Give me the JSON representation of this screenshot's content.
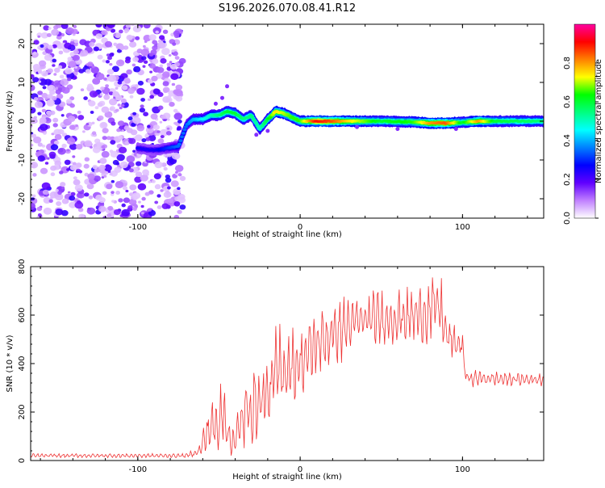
{
  "title": "S196.2026.070.08.41.R12",
  "chart_data": [
    {
      "type": "heatmap",
      "xlabel": "Height of straight line (km)",
      "ylabel": "Frequency (Hz)",
      "xlim": [
        -166,
        150
      ],
      "ylim": [
        -25,
        25
      ],
      "xticks": [
        -100,
        0,
        100
      ],
      "yticks": [
        20,
        10,
        0,
        -10,
        -20
      ],
      "colorbar": {
        "label": "Normalized spectral amplitude",
        "range": [
          0,
          1
        ],
        "ticks": [
          "0.0",
          "0.2",
          "0.4",
          "0.6",
          "0.8"
        ],
        "tick_values": [
          0.0,
          0.2,
          0.4,
          0.6,
          0.8
        ],
        "colors": [
          "#ffffff",
          "#c080ff",
          "#6000ff",
          "#0000ff",
          "#0080ff",
          "#00ffff",
          "#00ff80",
          "#00ff00",
          "#ffff00",
          "#ff8000",
          "#ff0000",
          "#ff00a0"
        ]
      },
      "noise_region": {
        "x": [
          -166,
          -72
        ],
        "freq": [
          -25,
          25
        ],
        "amplitude_max": 0.2
      },
      "ridge": [
        {
          "x": -100,
          "f": -7.0,
          "a": 0.25
        },
        {
          "x": -90,
          "f": -7.5,
          "a": 0.25
        },
        {
          "x": -82,
          "f": -7.0,
          "a": 0.3
        },
        {
          "x": -75,
          "f": -6.5,
          "a": 0.35
        },
        {
          "x": -70,
          "f": -1.0,
          "a": 0.35
        },
        {
          "x": -66,
          "f": 0.5,
          "a": 0.4
        },
        {
          "x": -60,
          "f": 0.5,
          "a": 0.45
        },
        {
          "x": -55,
          "f": 1.5,
          "a": 0.5
        },
        {
          "x": -50,
          "f": 1.5,
          "a": 0.55
        },
        {
          "x": -45,
          "f": 2.5,
          "a": 0.6
        },
        {
          "x": -40,
          "f": 2.0,
          "a": 0.6
        },
        {
          "x": -35,
          "f": 0.5,
          "a": 0.55
        },
        {
          "x": -30,
          "f": 1.5,
          "a": 0.55
        },
        {
          "x": -25,
          "f": -2.0,
          "a": 0.5
        },
        {
          "x": -20,
          "f": 0.5,
          "a": 0.6
        },
        {
          "x": -15,
          "f": 2.5,
          "a": 0.75
        },
        {
          "x": -10,
          "f": 2.0,
          "a": 0.7
        },
        {
          "x": -5,
          "f": 1.0,
          "a": 0.65
        },
        {
          "x": 0,
          "f": 0.0,
          "a": 0.65
        },
        {
          "x": 10,
          "f": 0.0,
          "a": 0.9
        },
        {
          "x": 20,
          "f": 0.0,
          "a": 0.85
        },
        {
          "x": 30,
          "f": 0.0,
          "a": 0.75
        },
        {
          "x": 50,
          "f": 0.0,
          "a": 0.6
        },
        {
          "x": 70,
          "f": -0.2,
          "a": 0.65
        },
        {
          "x": 80,
          "f": -0.5,
          "a": 0.8
        },
        {
          "x": 90,
          "f": -0.5,
          "a": 0.85
        },
        {
          "x": 100,
          "f": -0.3,
          "a": 0.6
        },
        {
          "x": 110,
          "f": 0.0,
          "a": 0.8
        },
        {
          "x": 120,
          "f": 0.0,
          "a": 0.6
        },
        {
          "x": 150,
          "f": 0.0,
          "a": 0.55
        }
      ]
    },
    {
      "type": "line",
      "xlabel": "Height of straight line (km)",
      "ylabel": "SNR (10 * v/v)",
      "xlim": [
        -166,
        150
      ],
      "ylim": [
        0,
        800
      ],
      "xticks": [
        -100,
        0,
        100
      ],
      "yticks": [
        0,
        200,
        400,
        600,
        800
      ],
      "color": "#ee3333",
      "series": [
        {
          "name": "SNR",
          "envelope": [
            {
              "x": -166,
              "mean": 20,
              "osc": 8
            },
            {
              "x": -70,
              "mean": 20,
              "osc": 8
            },
            {
              "x": -62,
              "mean": 40,
              "osc": 25
            },
            {
              "x": -55,
              "mean": 150,
              "osc": 120
            },
            {
              "x": -50,
              "mean": 120,
              "osc": 100
            },
            {
              "x": -48,
              "mean": 300,
              "osc": 250
            },
            {
              "x": -45,
              "mean": 100,
              "osc": 80
            },
            {
              "x": -40,
              "mean": 80,
              "osc": 70
            },
            {
              "x": -35,
              "mean": 180,
              "osc": 140
            },
            {
              "x": -30,
              "mean": 220,
              "osc": 150
            },
            {
              "x": -20,
              "mean": 270,
              "osc": 160
            },
            {
              "x": -15,
              "mean": 350,
              "osc": 250
            },
            {
              "x": -10,
              "mean": 380,
              "osc": 150
            },
            {
              "x": 0,
              "mean": 400,
              "osc": 140
            },
            {
              "x": 10,
              "mean": 480,
              "osc": 130
            },
            {
              "x": 20,
              "mean": 520,
              "osc": 130
            },
            {
              "x": 30,
              "mean": 560,
              "osc": 120
            },
            {
              "x": 40,
              "mean": 580,
              "osc": 110
            },
            {
              "x": 60,
              "mean": 590,
              "osc": 110
            },
            {
              "x": 75,
              "mean": 600,
              "osc": 110
            },
            {
              "x": 80,
              "mean": 620,
              "osc": 130
            },
            {
              "x": 86,
              "mean": 640,
              "osc": 160
            },
            {
              "x": 90,
              "mean": 520,
              "osc": 80
            },
            {
              "x": 95,
              "mean": 480,
              "osc": 70
            },
            {
              "x": 100,
              "mean": 480,
              "osc": 60
            },
            {
              "x": 102,
              "mean": 340,
              "osc": 40
            },
            {
              "x": 110,
              "mean": 340,
              "osc": 30
            },
            {
              "x": 130,
              "mean": 335,
              "osc": 25
            },
            {
              "x": 150,
              "mean": 335,
              "osc": 25
            }
          ]
        }
      ]
    }
  ]
}
